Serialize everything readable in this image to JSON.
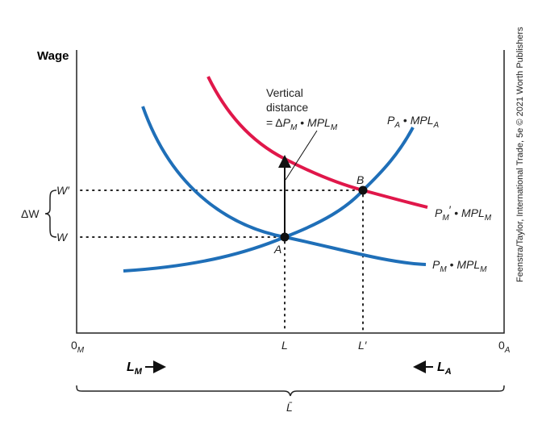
{
  "axis": {
    "y_label": "Wage",
    "origin_left": "0",
    "origin_left_sub": "M",
    "origin_right": "0",
    "origin_right_sub": "A"
  },
  "x_ticks": {
    "L": "L",
    "L_prime": "L′"
  },
  "y_ticks": {
    "W_prime": "W′",
    "W": "W",
    "delta_W": "ΔW"
  },
  "points": {
    "A": "A",
    "B": "B"
  },
  "curves": {
    "pa_mpla": {
      "p": "P",
      "p_sub": "A",
      "dot": " • ",
      "mpl": "MPL",
      "mpl_sub": "A",
      "color": "#1f6fb8"
    },
    "pm_mplm": {
      "p": "P",
      "p_sub": "M",
      "dot": " • ",
      "mpl": "MPL",
      "mpl_sub": "M",
      "color": "#1f6fb8"
    },
    "pm_prime_mplm": {
      "p": "P",
      "p_sub": "M",
      "prime": "′",
      "dot": " • ",
      "mpl": "MPL",
      "mpl_sub": "M",
      "color": "#e0174a"
    }
  },
  "annotation": {
    "line1": "Vertical",
    "line2": "distance",
    "eq": "= Δ",
    "p": "P",
    "p_sub": "M",
    "dot": " • ",
    "mpl": "MPL",
    "mpl_sub": "M"
  },
  "labor": {
    "lm": "L",
    "lm_sub": "M",
    "la": "L",
    "la_sub": "A",
    "total": "L̄"
  },
  "credit": "Feenstra/Taylor, International Trade, 5e © 2021 Worth Publishers"
}
